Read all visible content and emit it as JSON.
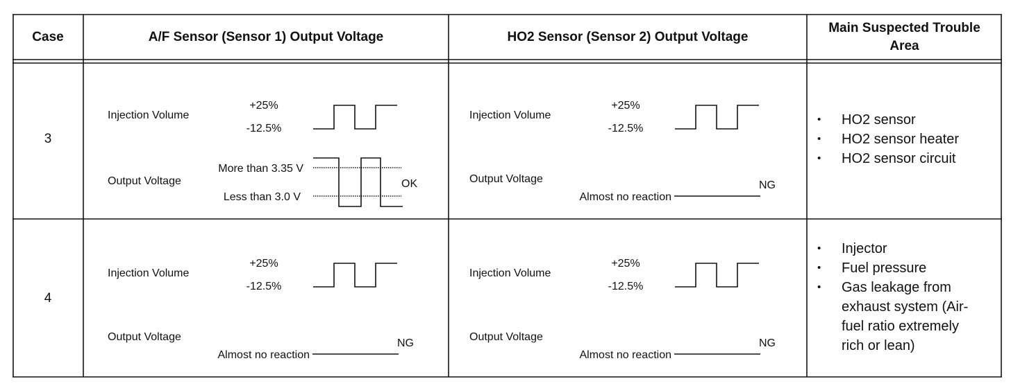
{
  "table": {
    "headers": [
      "Case",
      "A/F Sensor (Sensor 1) Output Voltage",
      "HO2 Sensor (Sensor 2) Output Voltage",
      "Main Suspected Trouble Area"
    ],
    "rows": [
      {
        "case": "3",
        "af_sensor": {
          "injection_label": "Injection Volume",
          "high": "+25%",
          "low": "-12.5%",
          "output_label": "Output Voltage",
          "upper": "More than 3.35 V",
          "lower": "Less than 3.0 V",
          "result": "OK"
        },
        "ho2_sensor": {
          "injection_label": "Injection Volume",
          "high": "+25%",
          "low": "-12.5%",
          "output_label": "Output Voltage",
          "note": "Almost no reaction",
          "result": "NG"
        },
        "trouble_areas": [
          "HO2 sensor",
          "HO2 sensor heater",
          "HO2 sensor circuit"
        ]
      },
      {
        "case": "4",
        "af_sensor": {
          "injection_label": "Injection Volume",
          "high": "+25%",
          "low": "-12.5%",
          "output_label": "Output Voltage",
          "note": "Almost no reaction",
          "result": "NG"
        },
        "ho2_sensor": {
          "injection_label": "Injection Volume",
          "high": "+25%",
          "low": "-12.5%",
          "output_label": "Output Voltage",
          "note": "Almost no reaction",
          "result": "NG"
        },
        "trouble_areas": [
          "Injector",
          "Fuel pressure",
          "Gas leakage from exhaust system (Air-fuel ratio extremely rich or lean)"
        ]
      }
    ]
  }
}
